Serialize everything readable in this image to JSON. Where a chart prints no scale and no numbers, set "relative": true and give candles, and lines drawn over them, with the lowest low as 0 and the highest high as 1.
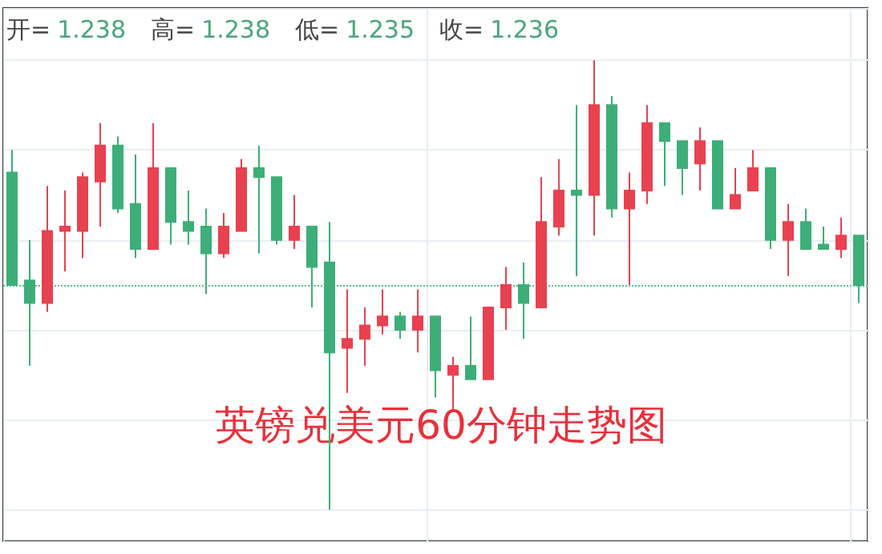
{
  "chart_data": {
    "type": "candlestick",
    "title": "英镑兑美元60分钟走势图",
    "relative": true,
    "grid": true,
    "annotations": [
      "开=1.238",
      "高=1.238",
      "低=1.235",
      "收=1.236"
    ],
    "ref_lines": [
      {
        "axis": "y",
        "value": 0.5,
        "color": "#5bb98a",
        "line_style": "dotted"
      }
    ],
    "categories": [
      null,
      null,
      null,
      null,
      null,
      null,
      null,
      null,
      null,
      null,
      null,
      null,
      null,
      null,
      null,
      null,
      null,
      null,
      null,
      null,
      null,
      null,
      null,
      null,
      null,
      null,
      null,
      null,
      null,
      null,
      null,
      null,
      null,
      null,
      null,
      null,
      null,
      null,
      null,
      null,
      null,
      null,
      null,
      null,
      null,
      null,
      null,
      null,
      null
    ],
    "ohlc": [
      [
        0.75,
        0.8,
        0.5,
        0.5
      ],
      [
        0.51,
        0.6,
        0.32,
        0.46
      ],
      [
        0.46,
        0.72,
        0.44,
        0.62
      ],
      [
        0.62,
        0.71,
        0.53,
        0.63
      ],
      [
        0.62,
        0.75,
        0.56,
        0.74
      ],
      [
        0.73,
        0.86,
        0.63,
        0.81
      ],
      [
        0.81,
        0.83,
        0.66,
        0.67
      ],
      [
        0.68,
        0.79,
        0.56,
        0.58
      ],
      [
        0.58,
        0.86,
        0.58,
        0.76
      ],
      [
        0.76,
        0.76,
        0.59,
        0.64
      ],
      [
        0.64,
        0.71,
        0.59,
        0.62
      ],
      [
        0.63,
        0.67,
        0.48,
        0.57
      ],
      [
        0.57,
        0.66,
        0.56,
        0.63
      ],
      [
        0.62,
        0.78,
        0.62,
        0.76
      ],
      [
        0.76,
        0.81,
        0.57,
        0.74
      ],
      [
        0.74,
        0.74,
        0.59,
        0.6
      ],
      [
        0.6,
        0.7,
        0.58,
        0.63
      ],
      [
        0.63,
        0.63,
        0.45,
        0.54
      ],
      [
        0.55,
        0.64,
        0,
        0.35
      ],
      [
        0.36,
        0.49,
        0.26,
        0.38
      ],
      [
        0.38,
        0.45,
        0.32,
        0.41
      ],
      [
        0.41,
        0.49,
        0.39,
        0.43
      ],
      [
        0.43,
        0.44,
        0.38,
        0.4
      ],
      [
        0.4,
        0.49,
        0.35,
        0.43
      ],
      [
        0.43,
        0.43,
        0.25,
        0.31
      ],
      [
        0.3,
        0.34,
        0.22,
        0.32
      ],
      [
        0.32,
        0.43,
        0.29,
        0.29
      ],
      [
        0.29,
        0.45,
        0.29,
        0.45
      ],
      [
        0.45,
        0.54,
        0.4,
        0.5
      ],
      [
        0.5,
        0.55,
        0.38,
        0.46
      ],
      [
        0.45,
        0.74,
        0.45,
        0.64
      ],
      [
        0.63,
        0.78,
        0.61,
        0.71
      ],
      [
        0.71,
        0.9,
        0.52,
        0.7
      ],
      [
        0.7,
        1,
        0.61,
        0.9
      ],
      [
        0.9,
        0.92,
        0.65,
        0.67
      ],
      [
        0.67,
        0.75,
        0.5,
        0.71
      ],
      [
        0.71,
        0.9,
        0.68,
        0.86
      ],
      [
        0.86,
        0.86,
        0.72,
        0.82
      ],
      [
        0.82,
        0.82,
        0.7,
        0.76
      ],
      [
        0.77,
        0.85,
        0.71,
        0.82
      ],
      [
        0.82,
        0.82,
        0.67,
        0.67
      ],
      [
        0.67,
        0.76,
        0.67,
        0.7
      ],
      [
        0.71,
        0.8,
        0.71,
        0.76
      ],
      [
        0.76,
        0.76,
        0.58,
        0.6
      ],
      [
        0.6,
        0.68,
        0.52,
        0.64
      ],
      [
        0.64,
        0.67,
        0.58,
        0.58
      ],
      [
        0.59,
        0.63,
        0.58,
        0.58
      ],
      [
        0.58,
        0.65,
        0.56,
        0.61
      ],
      [
        0.61,
        0.61,
        0.46,
        0.5
      ]
    ]
  }
}
